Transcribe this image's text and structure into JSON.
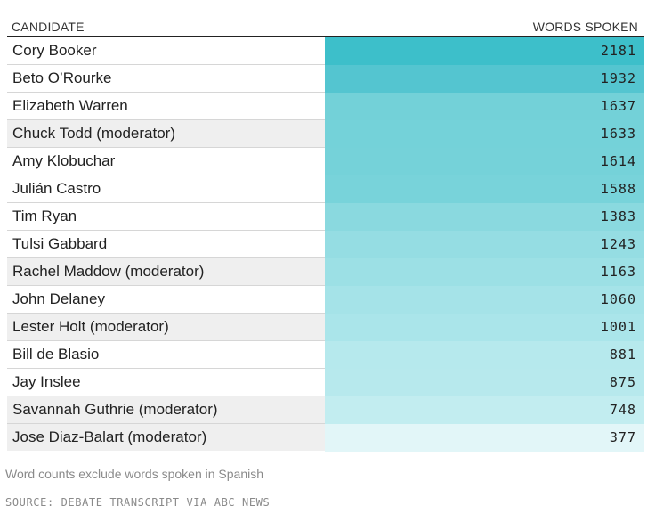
{
  "header": {
    "left": "CANDIDATE",
    "right": "WORDS SPOKEN"
  },
  "rows": [
    {
      "name": "Cory Booker",
      "words": "2181",
      "moderator": false,
      "color": "#3dbfca"
    },
    {
      "name": "Beto O’Rourke",
      "words": "1932",
      "moderator": false,
      "color": "#54c5d0"
    },
    {
      "name": "Elizabeth Warren",
      "words": "1637",
      "moderator": false,
      "color": "#73d1d8"
    },
    {
      "name": "Chuck Todd (moderator)",
      "words": "1633",
      "moderator": true,
      "color": "#74d2d9"
    },
    {
      "name": "Amy Klobuchar",
      "words": "1614",
      "moderator": false,
      "color": "#75d2d9"
    },
    {
      "name": "Julián Castro",
      "words": "1588",
      "moderator": false,
      "color": "#78d3da"
    },
    {
      "name": "Tim Ryan",
      "words": "1383",
      "moderator": false,
      "color": "#8ad9df"
    },
    {
      "name": "Tulsi Gabbard",
      "words": "1243",
      "moderator": false,
      "color": "#95dde3"
    },
    {
      "name": "Rachel Maddow (moderator)",
      "words": "1163",
      "moderator": true,
      "color": "#9ce0e5"
    },
    {
      "name": "John Delaney",
      "words": "1060",
      "moderator": false,
      "color": "#a5e3e8"
    },
    {
      "name": "Lester Holt (moderator)",
      "words": "1001",
      "moderator": true,
      "color": "#aae5ea"
    },
    {
      "name": "Bill de Blasio",
      "words": "881",
      "moderator": false,
      "color": "#b6e9ed"
    },
    {
      "name": "Jay Inslee",
      "words": "875",
      "moderator": false,
      "color": "#b7e9ed"
    },
    {
      "name": "Savannah Guthrie (moderator)",
      "words": "748",
      "moderator": true,
      "color": "#c2edf0"
    },
    {
      "name": "Jose Diaz-Balart (moderator)",
      "words": "377",
      "moderator": true,
      "color": "#e2f6f8"
    }
  ],
  "note": "Word counts exclude words spoken in Spanish",
  "source": "SOURCE: DEBATE TRANSCRIPT VIA ABC NEWS"
}
